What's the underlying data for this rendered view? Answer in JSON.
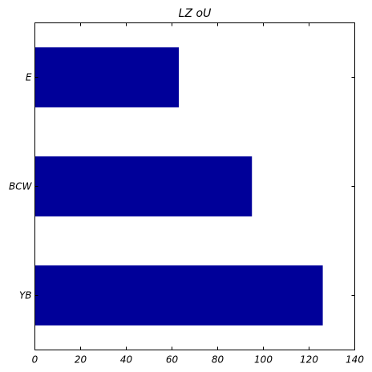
{
  "chart_data": {
    "type": "bar",
    "orientation": "horizontal",
    "title": "LZ oU",
    "xlabel": "",
    "ylabel": "",
    "categories": [
      "YB",
      "BCW",
      "E"
    ],
    "values": [
      126,
      95,
      63
    ],
    "xlim": [
      0,
      140
    ],
    "xticks": [
      0,
      20,
      40,
      60,
      80,
      100,
      120,
      140
    ],
    "bar_color": "#000099",
    "grid": false,
    "legend": "none"
  }
}
